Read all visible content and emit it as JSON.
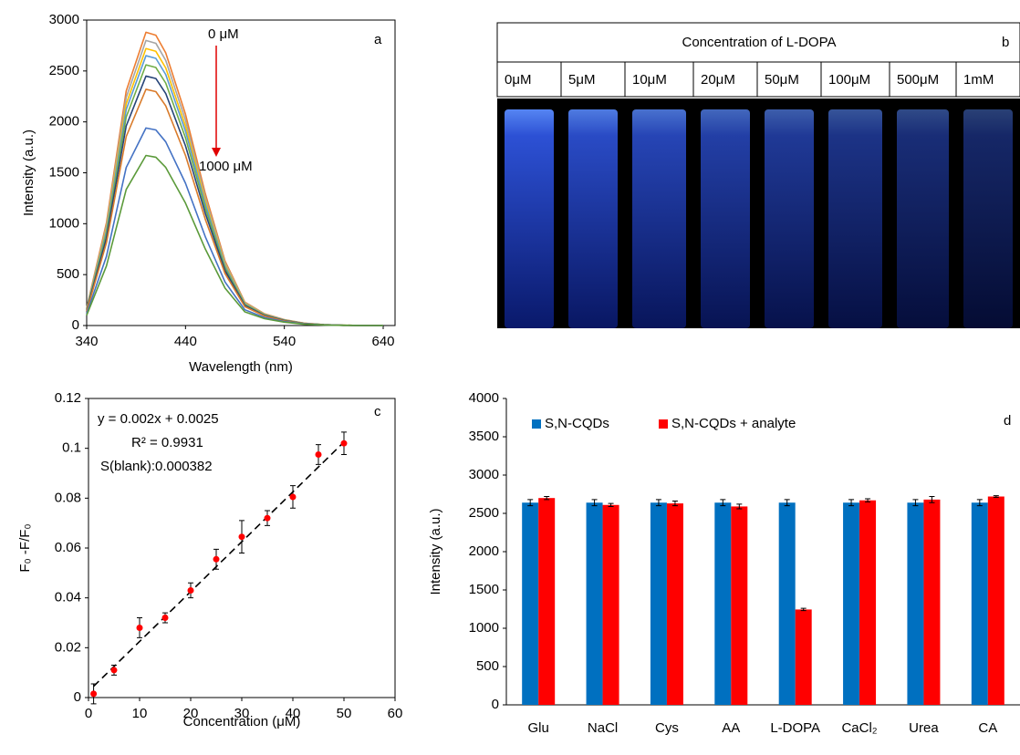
{
  "chart_data": [
    {
      "type": "line",
      "panel_label": "a",
      "x_label": "Wavelength (nm)",
      "y_label": "Intensity (a.u.)",
      "annotations": [
        "0 μM",
        "1000 μM"
      ],
      "x": [
        340,
        360,
        380,
        400,
        410,
        420,
        440,
        460,
        480,
        500,
        520,
        540,
        560,
        580,
        600,
        620,
        640
      ],
      "series": [
        {
          "color": "#ed7d31",
          "values": [
            173,
            1008,
            2304,
            2880,
            2851,
            2678,
            2074,
            1296,
            634,
            230,
            115,
            58,
            23,
            9,
            3,
            0,
            0
          ]
        },
        {
          "color": "#a5a5a5",
          "values": [
            168,
            980,
            2240,
            2800,
            2772,
            2604,
            2016,
            1260,
            616,
            224,
            112,
            56,
            22,
            8,
            3,
            0,
            0
          ]
        },
        {
          "color": "#ffc000",
          "values": [
            163,
            952,
            2176,
            2720,
            2693,
            2530,
            1958,
            1224,
            598,
            218,
            109,
            54,
            22,
            8,
            3,
            0,
            0
          ]
        },
        {
          "color": "#5b9bd5",
          "values": [
            159,
            928,
            2120,
            2650,
            2624,
            2465,
            1908,
            1193,
            583,
            212,
            106,
            53,
            21,
            8,
            3,
            0,
            0
          ]
        },
        {
          "color": "#70ad47",
          "values": [
            154,
            896,
            2048,
            2560,
            2534,
            2381,
            1843,
            1152,
            563,
            205,
            102,
            51,
            20,
            8,
            3,
            0,
            0
          ]
        },
        {
          "color": "#264478",
          "values": [
            147,
            858,
            1960,
            2450,
            2426,
            2279,
            1764,
            1103,
            539,
            196,
            98,
            49,
            20,
            7,
            2,
            0,
            0
          ]
        },
        {
          "color": "#d97b2b",
          "values": [
            139,
            812,
            1856,
            2320,
            2297,
            2158,
            1670,
            1044,
            510,
            186,
            93,
            46,
            19,
            7,
            2,
            0,
            0
          ]
        },
        {
          "color": "#4472c4",
          "values": [
            116,
            679,
            1552,
            1940,
            1921,
            1804,
            1397,
            873,
            427,
            155,
            78,
            39,
            16,
            6,
            2,
            0,
            0
          ]
        },
        {
          "color": "#5b9a3a",
          "values": [
            100,
            585,
            1336,
            1670,
            1653,
            1553,
            1202,
            752,
            367,
            134,
            67,
            33,
            13,
            5,
            2,
            0,
            0
          ]
        }
      ],
      "xlim": [
        340,
        652
      ],
      "xticks": [
        340,
        440,
        540,
        640
      ],
      "ylim": [
        0,
        3000
      ],
      "yticks": [
        0,
        500,
        1000,
        1500,
        2000,
        2500,
        3000
      ]
    },
    {
      "type": "photo",
      "title": "Concentration of L-DOPA",
      "panel_label": "b",
      "categories": [
        "0μM",
        "5μM",
        "10μM",
        "20μM",
        "50μM",
        "100μM",
        "500μM",
        "1mM"
      ]
    },
    {
      "type": "scatter",
      "panel_label": "c",
      "x_label": "Concentration (μM)",
      "y_label": "F₀ -F/F₀",
      "annotations": [
        "y = 0.002x + 0.0025",
        "R² = 0.9931",
        "S(blank):0.000382"
      ],
      "fit_line": {
        "slope": 0.002,
        "intercept": 0.0025
      },
      "x": [
        1,
        5,
        10,
        15,
        20,
        25,
        30,
        35,
        40,
        45,
        50
      ],
      "values": [
        0.0015,
        0.011,
        0.028,
        0.032,
        0.043,
        0.0555,
        0.0645,
        0.072,
        0.0805,
        0.0975,
        0.102
      ],
      "errors": [
        0.004,
        0.002,
        0.004,
        0.002,
        0.003,
        0.004,
        0.0065,
        0.003,
        0.0045,
        0.004,
        0.0045
      ],
      "color": "#ff0000",
      "xlim": [
        0,
        60
      ],
      "xticks": [
        0,
        10,
        20,
        30,
        40,
        50,
        60
      ],
      "ylim": [
        0,
        0.12
      ],
      "yticks": [
        0,
        0.02,
        0.04,
        0.06,
        0.08,
        0.1,
        0.12
      ]
    },
    {
      "type": "bar",
      "panel_label": "d",
      "y_label": "Intensity (a.u.)",
      "categories": [
        "Glu",
        "NaCl",
        "Cys",
        "AA",
        "L-DOPA",
        "CaCl₂",
        "Urea",
        "CA"
      ],
      "series": [
        {
          "name": "S,N-CQDs",
          "color": "#0070c0",
          "values": [
            2640,
            2640,
            2640,
            2640,
            2640,
            2640,
            2640,
            2640
          ],
          "errors": [
            40,
            40,
            40,
            40,
            40,
            40,
            40,
            40
          ]
        },
        {
          "name": "S,N-CQDs + analyte",
          "color": "#ff0000",
          "values": [
            2700,
            2610,
            2630,
            2590,
            1245,
            2670,
            2680,
            2720
          ],
          "errors": [
            20,
            20,
            30,
            30,
            15,
            20,
            40,
            10
          ]
        }
      ],
      "ylim": [
        0,
        4000
      ],
      "yticks": [
        0,
        500,
        1000,
        1500,
        2000,
        2500,
        3000,
        3500,
        4000
      ]
    }
  ]
}
